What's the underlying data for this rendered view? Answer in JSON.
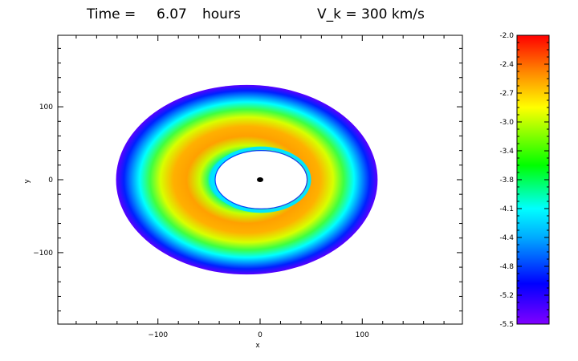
{
  "chart_data": {
    "type": "heatmap",
    "title_parts": [
      "Time =",
      "6.07",
      "hours",
      "V_k = 300 km/s"
    ],
    "xlabel": "x",
    "ylabel": "y",
    "xlim": [
      -198,
      198
    ],
    "ylim": [
      -198,
      198
    ],
    "x_ticks": [
      -100,
      0,
      100
    ],
    "y_ticks": [
      -100,
      0,
      100
    ],
    "x_tick_labels": [
      "−100",
      "0",
      "100"
    ],
    "y_tick_labels": [
      "−100",
      "0",
      "100"
    ],
    "field": {
      "description_of_structure": "annular distribution",
      "outer_ellipse": {
        "cx": -13,
        "cy": 0,
        "rx": 128,
        "ry": 130
      },
      "inner_hole": {
        "cx": 1,
        "cy": 0,
        "rx": 45,
        "ry": 40
      },
      "central_object": {
        "x": 0,
        "y": 0
      },
      "radial_profile": [
        {
          "r": 0.0,
          "value": -4.4
        },
        {
          "r": 0.04,
          "value": -3.6
        },
        {
          "r": 0.35,
          "value": -2.6
        },
        {
          "r": 0.6,
          "value": -3.2
        },
        {
          "r": 0.8,
          "value": -4.3
        },
        {
          "r": 1.0,
          "value": -5.3
        }
      ]
    },
    "colorbar": {
      "min": -5.5,
      "max": -2.0,
      "tick_labels": [
        "-2.0",
        "-2.4",
        "-2.7",
        "-3.0",
        "-3.4",
        "-3.8",
        "-4.1",
        "-4.4",
        "-4.8",
        "-5.2",
        "-5.5"
      ],
      "tick_values": [
        -2.0,
        -2.35,
        -2.7,
        -3.05,
        -3.4,
        -3.75,
        -4.1,
        -4.45,
        -4.8,
        -5.15,
        -5.5
      ],
      "colors": [
        "#8000ff",
        "#0000ff",
        "#00aaff",
        "#00ffff",
        "#00ff00",
        "#ffff00",
        "#ff8000",
        "#ff0000"
      ]
    }
  }
}
